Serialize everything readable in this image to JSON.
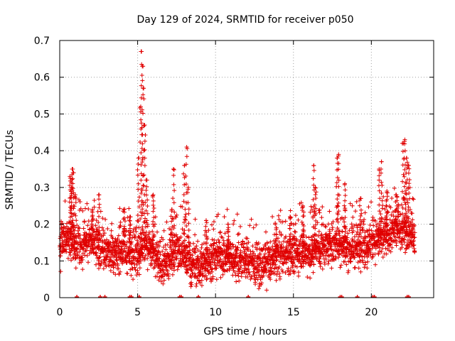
{
  "chart_data": {
    "type": "scatter",
    "title": "Day 129 of 2024, SRMTID for receiver p050",
    "xlabel": "GPS time / hours",
    "ylabel": "SRMTID / TECUs",
    "xlim": [
      0,
      24
    ],
    "ylim": [
      0,
      0.7
    ],
    "xticks": [
      0,
      5,
      10,
      15,
      20
    ],
    "yticks": [
      0,
      0.1,
      0.2,
      0.3,
      0.4,
      0.5,
      0.6,
      0.7
    ],
    "xtick_labels": [
      "0",
      "5",
      "10",
      "15",
      "20"
    ],
    "ytick_labels": [
      "0",
      "0.1",
      "0.2",
      "0.3",
      "0.4",
      "0.5",
      "0.6",
      "0.7"
    ],
    "grid": true,
    "marker": "+",
    "color": "#e00000",
    "x_end": 22.8,
    "baseline": [
      [
        0.0,
        0.14
      ],
      [
        0.5,
        0.17
      ],
      [
        1.0,
        0.15
      ],
      [
        1.5,
        0.14
      ],
      [
        2.0,
        0.16
      ],
      [
        2.5,
        0.14
      ],
      [
        3.0,
        0.13
      ],
      [
        3.5,
        0.12
      ],
      [
        4.0,
        0.13
      ],
      [
        4.5,
        0.12
      ],
      [
        5.0,
        0.12
      ],
      [
        5.5,
        0.15
      ],
      [
        6.0,
        0.12
      ],
      [
        6.5,
        0.09
      ],
      [
        7.0,
        0.1
      ],
      [
        7.5,
        0.14
      ],
      [
        8.0,
        0.11
      ],
      [
        8.5,
        0.09
      ],
      [
        9.0,
        0.09
      ],
      [
        9.5,
        0.1
      ],
      [
        10.0,
        0.11
      ],
      [
        10.5,
        0.12
      ],
      [
        11.0,
        0.11
      ],
      [
        11.5,
        0.1
      ],
      [
        12.0,
        0.1
      ],
      [
        12.5,
        0.09
      ],
      [
        13.0,
        0.09
      ],
      [
        13.5,
        0.1
      ],
      [
        14.0,
        0.11
      ],
      [
        14.5,
        0.12
      ],
      [
        15.0,
        0.12
      ],
      [
        15.5,
        0.13
      ],
      [
        16.0,
        0.12
      ],
      [
        16.5,
        0.13
      ],
      [
        17.0,
        0.14
      ],
      [
        17.5,
        0.15
      ],
      [
        18.0,
        0.15
      ],
      [
        18.5,
        0.13
      ],
      [
        19.0,
        0.14
      ],
      [
        19.5,
        0.14
      ],
      [
        20.0,
        0.15
      ],
      [
        20.5,
        0.16
      ],
      [
        21.0,
        0.17
      ],
      [
        21.5,
        0.19
      ],
      [
        22.0,
        0.19
      ],
      [
        22.5,
        0.17
      ],
      [
        22.8,
        0.16
      ]
    ],
    "spikes": [
      {
        "x": 0.65,
        "y": 0.33
      },
      {
        "x": 0.75,
        "y": 0.3
      },
      {
        "x": 0.8,
        "y": 0.35
      },
      {
        "x": 0.85,
        "y": 0.34
      },
      {
        "x": 1.0,
        "y": 0.28
      },
      {
        "x": 2.5,
        "y": 0.28
      },
      {
        "x": 2.1,
        "y": 0.24
      },
      {
        "x": 4.1,
        "y": 0.24
      },
      {
        "x": 4.5,
        "y": 0.22
      },
      {
        "x": 5.05,
        "y": 0.38
      },
      {
        "x": 5.2,
        "y": 0.52
      },
      {
        "x": 5.25,
        "y": 0.67
      },
      {
        "x": 5.3,
        "y": 0.63
      },
      {
        "x": 5.35,
        "y": 0.57
      },
      {
        "x": 5.45,
        "y": 0.47
      },
      {
        "x": 5.6,
        "y": 0.32
      },
      {
        "x": 6.0,
        "y": 0.28
      },
      {
        "x": 7.2,
        "y": 0.24
      },
      {
        "x": 7.3,
        "y": 0.35
      },
      {
        "x": 8.0,
        "y": 0.36
      },
      {
        "x": 8.15,
        "y": 0.41
      },
      {
        "x": 8.25,
        "y": 0.3
      },
      {
        "x": 9.4,
        "y": 0.21
      },
      {
        "x": 10.8,
        "y": 0.2
      },
      {
        "x": 13.9,
        "y": 0.19
      },
      {
        "x": 14.8,
        "y": 0.22
      },
      {
        "x": 15.6,
        "y": 0.25
      },
      {
        "x": 16.3,
        "y": 0.36
      },
      {
        "x": 16.4,
        "y": 0.3
      },
      {
        "x": 17.8,
        "y": 0.38
      },
      {
        "x": 17.9,
        "y": 0.39
      },
      {
        "x": 18.3,
        "y": 0.31
      },
      {
        "x": 19.3,
        "y": 0.27
      },
      {
        "x": 20.5,
        "y": 0.35
      },
      {
        "x": 20.65,
        "y": 0.37
      },
      {
        "x": 21.0,
        "y": 0.29
      },
      {
        "x": 21.6,
        "y": 0.28
      },
      {
        "x": 22.05,
        "y": 0.42
      },
      {
        "x": 22.15,
        "y": 0.43
      },
      {
        "x": 22.25,
        "y": 0.38
      },
      {
        "x": 22.4,
        "y": 0.36
      }
    ],
    "zero_markers_x": [
      1.1,
      2.6,
      2.9,
      4.5,
      4.6,
      5.1,
      7.7,
      7.8,
      8.9,
      12.1,
      18.0,
      18.1,
      19.1,
      20.1,
      20.2,
      22.3,
      22.4
    ]
  }
}
